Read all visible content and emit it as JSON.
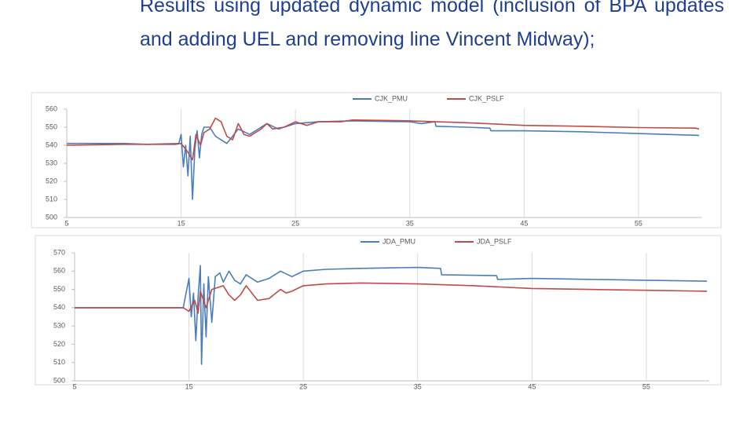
{
  "heading": "Results using updated dynamic model (inclusion of BPA updates and adding UEL and removing line Vincent Midway);",
  "chart_data": [
    {
      "type": "line",
      "xlim": [
        5,
        60.5
      ],
      "xticks": [
        5,
        15,
        25,
        35,
        45,
        55
      ],
      "ylim": [
        500,
        560
      ],
      "yticks": [
        500,
        510,
        520,
        530,
        540,
        550,
        560
      ],
      "grid": "x",
      "legend": "top",
      "series": [
        {
          "name": "CJK_PMU",
          "color": "#4a7ebb",
          "x": [
            5,
            8,
            10,
            12,
            14.8,
            15,
            15.2,
            15.4,
            15.6,
            15.8,
            16,
            16.2,
            16.4,
            16.6,
            16.8,
            17,
            17.5,
            18,
            18.5,
            19,
            20,
            21,
            22,
            22.5,
            23.5,
            24.5,
            25,
            27,
            30,
            35,
            36,
            37.2,
            37.3,
            40,
            42,
            42.1,
            45,
            50,
            55,
            60.3
          ],
          "values": [
            541,
            541,
            541,
            540.5,
            541,
            546,
            528,
            540,
            523,
            545,
            510,
            538,
            548,
            533,
            546,
            550,
            550,
            545,
            543,
            541,
            549,
            546,
            550,
            552,
            549,
            551,
            552,
            553,
            553.5,
            553,
            552,
            553,
            550.5,
            550,
            549.5,
            548,
            548,
            547.5,
            546.5,
            545.5
          ]
        },
        {
          "name": "CJK_PSLF",
          "color": "#be4b48",
          "x": [
            5,
            10,
            14.5,
            15,
            15.5,
            16,
            16.3,
            16.7,
            17,
            17.5,
            18,
            18.5,
            19,
            19.5,
            20,
            20.5,
            21,
            22,
            22.5,
            23,
            24,
            25,
            26,
            27,
            29,
            30,
            35,
            40,
            45,
            50,
            55,
            60,
            60.3
          ],
          "values": [
            540,
            540.5,
            540.5,
            541,
            537,
            532,
            546,
            540,
            547,
            549,
            555,
            553,
            545,
            543,
            552,
            546,
            545,
            549,
            552,
            549,
            550,
            553,
            551,
            553,
            553,
            554,
            553.5,
            552.5,
            551,
            550.5,
            549.8,
            549.5,
            549
          ]
        }
      ]
    },
    {
      "type": "line",
      "xlim": [
        5,
        60.5
      ],
      "xticks": [
        5,
        15,
        25,
        35,
        45,
        55
      ],
      "ylim": [
        500,
        570
      ],
      "yticks": [
        500,
        510,
        520,
        530,
        540,
        550,
        560,
        570
      ],
      "grid": "x",
      "legend": "top",
      "series": [
        {
          "name": "JDA_PMU",
          "color": "#4a7ebb",
          "x": [
            5,
            14.5,
            15,
            15.2,
            15.4,
            15.6,
            15.8,
            16,
            16.1,
            16.3,
            16.5,
            16.7,
            17,
            17.3,
            17.7,
            18,
            18.5,
            19,
            19.5,
            20,
            21,
            22,
            23,
            24,
            25,
            27,
            30,
            35,
            37,
            37.1,
            41.9,
            42,
            45,
            50,
            55,
            60.3
          ],
          "values": [
            540,
            540,
            556,
            535,
            548,
            522,
            546,
            563,
            509,
            553,
            524,
            557,
            532,
            557,
            559,
            554,
            560,
            555,
            553,
            558,
            554,
            556,
            560,
            557,
            560,
            561,
            561.5,
            562,
            561.5,
            558,
            557.5,
            555.5,
            556,
            555.5,
            555,
            554.5
          ]
        },
        {
          "name": "JDA_PSLF",
          "color": "#be4b48",
          "x": [
            5,
            14.5,
            15,
            15.5,
            15.8,
            16,
            16.5,
            17,
            18,
            18.5,
            19,
            19.5,
            20,
            21,
            22,
            23,
            23.5,
            24,
            25,
            27,
            30,
            35,
            40,
            45,
            50,
            55,
            60.3
          ],
          "values": [
            540,
            540,
            538,
            544,
            537,
            549,
            540,
            550,
            552,
            547,
            544,
            547,
            552,
            544,
            545,
            550,
            548,
            549,
            552,
            553,
            553.5,
            553,
            552,
            550.5,
            550,
            549.5,
            549
          ]
        }
      ]
    }
  ]
}
